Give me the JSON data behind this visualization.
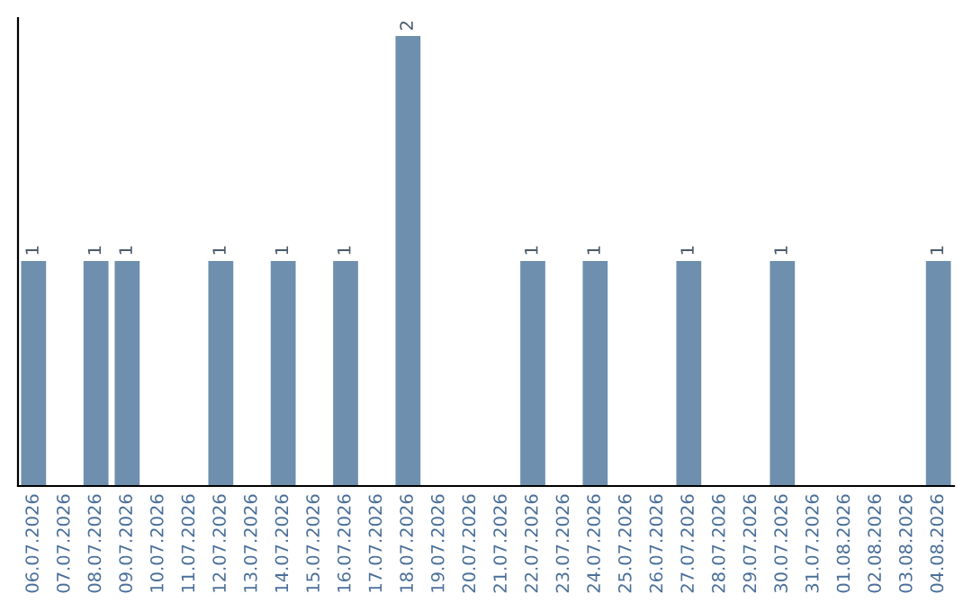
{
  "chart_data": {
    "type": "bar",
    "categories": [
      "06.07.2026",
      "07.07.2026",
      "08.07.2026",
      "09.07.2026",
      "10.07.2026",
      "11.07.2026",
      "12.07.2026",
      "13.07.2026",
      "14.07.2026",
      "15.07.2026",
      "16.07.2026",
      "17.07.2026",
      "18.07.2026",
      "19.07.2026",
      "20.07.2026",
      "21.07.2026",
      "22.07.2026",
      "23.07.2026",
      "24.07.2026",
      "25.07.2026",
      "26.07.2026",
      "27.07.2026",
      "28.07.2026",
      "29.07.2026",
      "30.07.2026",
      "31.07.2026",
      "01.08.2026",
      "02.08.2026",
      "03.08.2026",
      "04.08.2026"
    ],
    "values": [
      1,
      0,
      1,
      1,
      0,
      0,
      1,
      0,
      1,
      0,
      1,
      0,
      2,
      0,
      0,
      0,
      1,
      0,
      1,
      0,
      0,
      1,
      0,
      0,
      1,
      0,
      0,
      0,
      0,
      1
    ],
    "value_labels": [
      "1",
      null,
      "1",
      "1",
      null,
      null,
      "1",
      null,
      "1",
      null,
      "1",
      null,
      "2",
      null,
      null,
      null,
      "1",
      null,
      "1",
      null,
      null,
      "1",
      null,
      null,
      "1",
      null,
      null,
      null,
      null,
      "1"
    ],
    "color": "#6e8fad",
    "tick_labels": "x",
    "grid": false,
    "legend": false
  }
}
